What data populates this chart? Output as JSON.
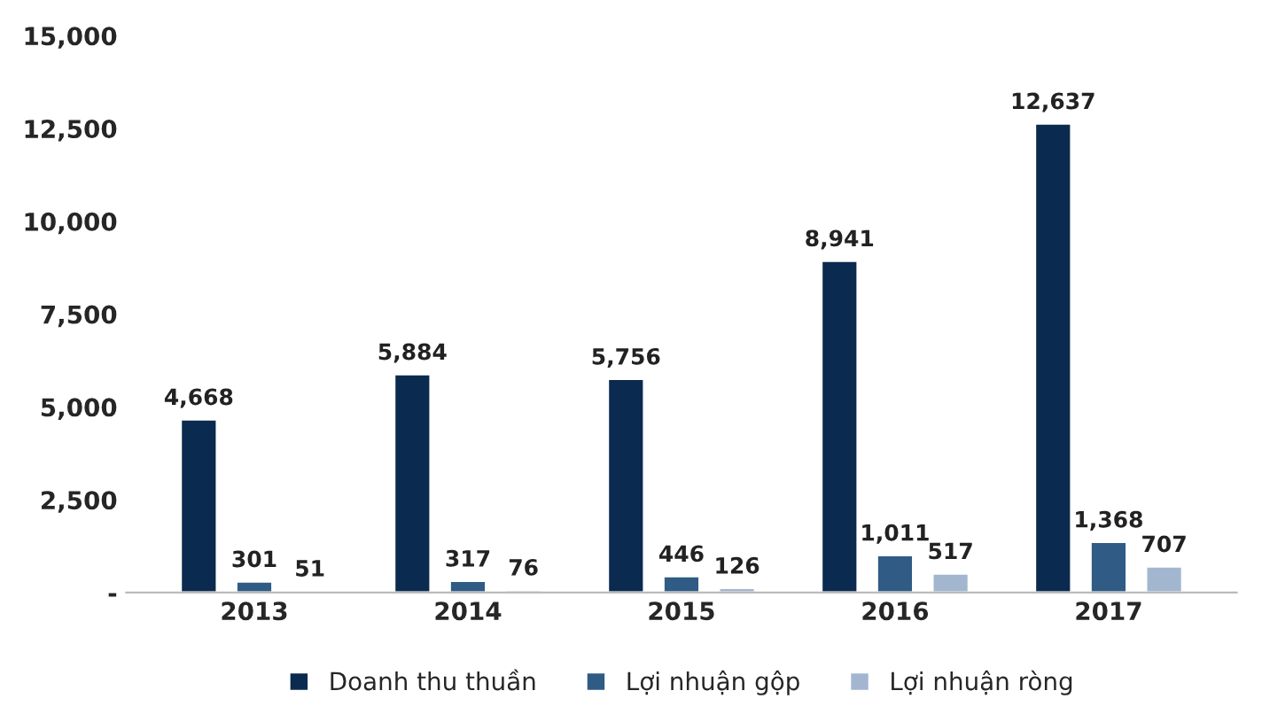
{
  "chart_data": {
    "type": "bar",
    "categories": [
      "2013",
      "2014",
      "2015",
      "2016",
      "2017"
    ],
    "series": [
      {
        "name": "Doanh thu thuần",
        "color": "#0b2a4f",
        "values": [
          4668,
          5884,
          5756,
          8941,
          12637
        ],
        "value_labels": [
          "4,668",
          "5,884",
          "5,756",
          "8,941",
          "12,637"
        ]
      },
      {
        "name": "Lợi nhuận gộp",
        "color": "#2f5b85",
        "values": [
          301,
          317,
          446,
          1011,
          1368
        ],
        "value_labels": [
          "301",
          "317",
          "446",
          "1,011",
          "1,368"
        ]
      },
      {
        "name": "Lợi nhuận ròng",
        "color": "#a3b6cf",
        "values": [
          51,
          76,
          126,
          517,
          707
        ],
        "value_labels": [
          "51",
          "76",
          "126",
          "517",
          "707"
        ]
      }
    ],
    "ylim": [
      0,
      15000
    ],
    "yticks": [
      {
        "value": 0,
        "label": "-"
      },
      {
        "value": 2500,
        "label": "2,500"
      },
      {
        "value": 5000,
        "label": "5,000"
      },
      {
        "value": 7500,
        "label": "7,500"
      },
      {
        "value": 10000,
        "label": "10,000"
      },
      {
        "value": 12500,
        "label": "12,500"
      },
      {
        "value": 15000,
        "label": "15,000"
      }
    ],
    "legend": "bottom",
    "grid": false
  }
}
